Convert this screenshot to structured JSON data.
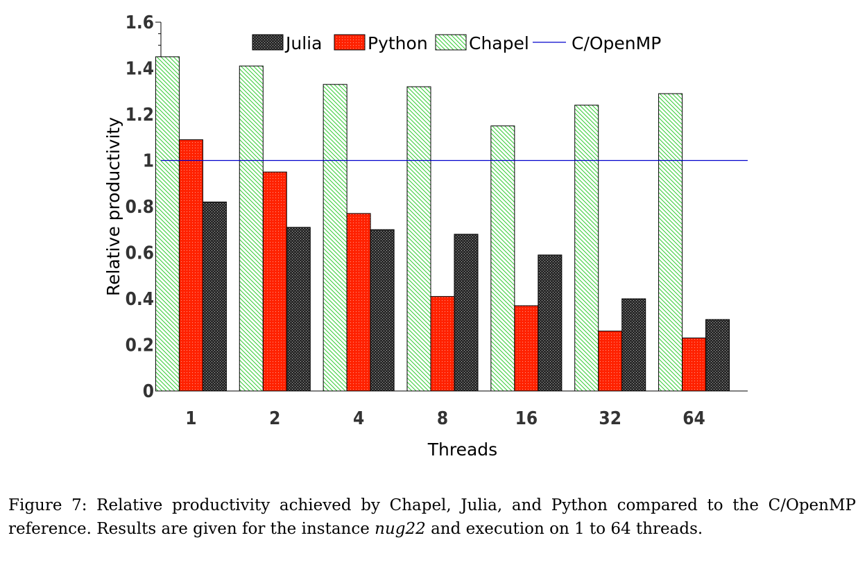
{
  "chart_data": {
    "type": "bar",
    "xlabel": "Threads",
    "ylabel": "Relative productivity",
    "categories": [
      "1",
      "2",
      "4",
      "8",
      "16",
      "32",
      "64"
    ],
    "ylim": [
      0,
      1.6
    ],
    "yticks": [
      "0",
      "0.2",
      "0.4",
      "0.6",
      "0.8",
      "1",
      "1.2",
      "1.4",
      "1.6"
    ],
    "series": [
      {
        "name": "Julia",
        "color": "#333333",
        "pattern": "dots-dark",
        "values": [
          0.82,
          0.71,
          0.7,
          0.68,
          0.59,
          0.4,
          0.31
        ]
      },
      {
        "name": "Python",
        "color": "#ff2200",
        "pattern": "dots-red",
        "values": [
          1.09,
          0.95,
          0.77,
          0.41,
          0.37,
          0.26,
          0.23
        ]
      },
      {
        "name": "Chapel",
        "color": "#33cc33",
        "pattern": "green-hatch",
        "values": [
          1.45,
          1.41,
          1.33,
          1.32,
          1.15,
          1.24,
          1.29
        ]
      }
    ],
    "reference_line": {
      "name": "C/OpenMP",
      "value": 1.0,
      "color": "#0000cc"
    },
    "legend_position": "top",
    "grid": false
  },
  "caption": {
    "prefix": "Figure 7:  Relative productivity achieved by Chapel, Julia, and Python compared to the C/OpenMP reference.  Results are given for the instance ",
    "instance": "nug22",
    "suffix": " and execution on 1 to 64 threads."
  }
}
